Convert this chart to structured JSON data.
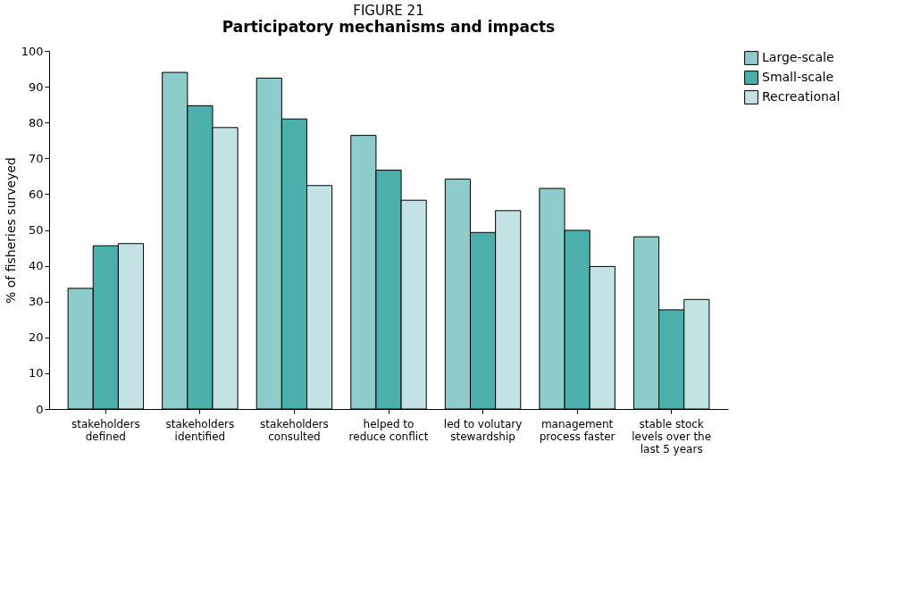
{
  "chart_data": {
    "type": "bar",
    "title": "FIGURE 21",
    "subtitle": "Participatory mechanisms and impacts",
    "ylabel": "% of fisheries surveyed",
    "categories": [
      "stakeholders defined",
      "stakeholders identified",
      "stakeholders consulted",
      "helped to reduce conflict",
      "led to volutary stewardship",
      "management process faster",
      "stable stock levels over the last 5 years"
    ],
    "series": [
      {
        "name": "Large-scale",
        "color": "#8ecbcb",
        "values": [
          33.7,
          94.0,
          92.4,
          76.4,
          64.2,
          61.6,
          48.1
        ]
      },
      {
        "name": "Small-scale",
        "color": "#4bb0ac",
        "values": [
          45.6,
          84.7,
          81.0,
          66.7,
          49.3,
          49.9,
          27.7
        ]
      },
      {
        "name": "Recreational",
        "color": "#c2e2e3",
        "values": [
          46.2,
          78.6,
          62.4,
          58.3,
          55.4,
          39.8,
          30.6
        ]
      }
    ],
    "ylim": [
      0,
      100
    ],
    "yticks": [
      0,
      10,
      20,
      30,
      40,
      50,
      60,
      70,
      80,
      90,
      100
    ],
    "grid": false,
    "legend": "right"
  }
}
